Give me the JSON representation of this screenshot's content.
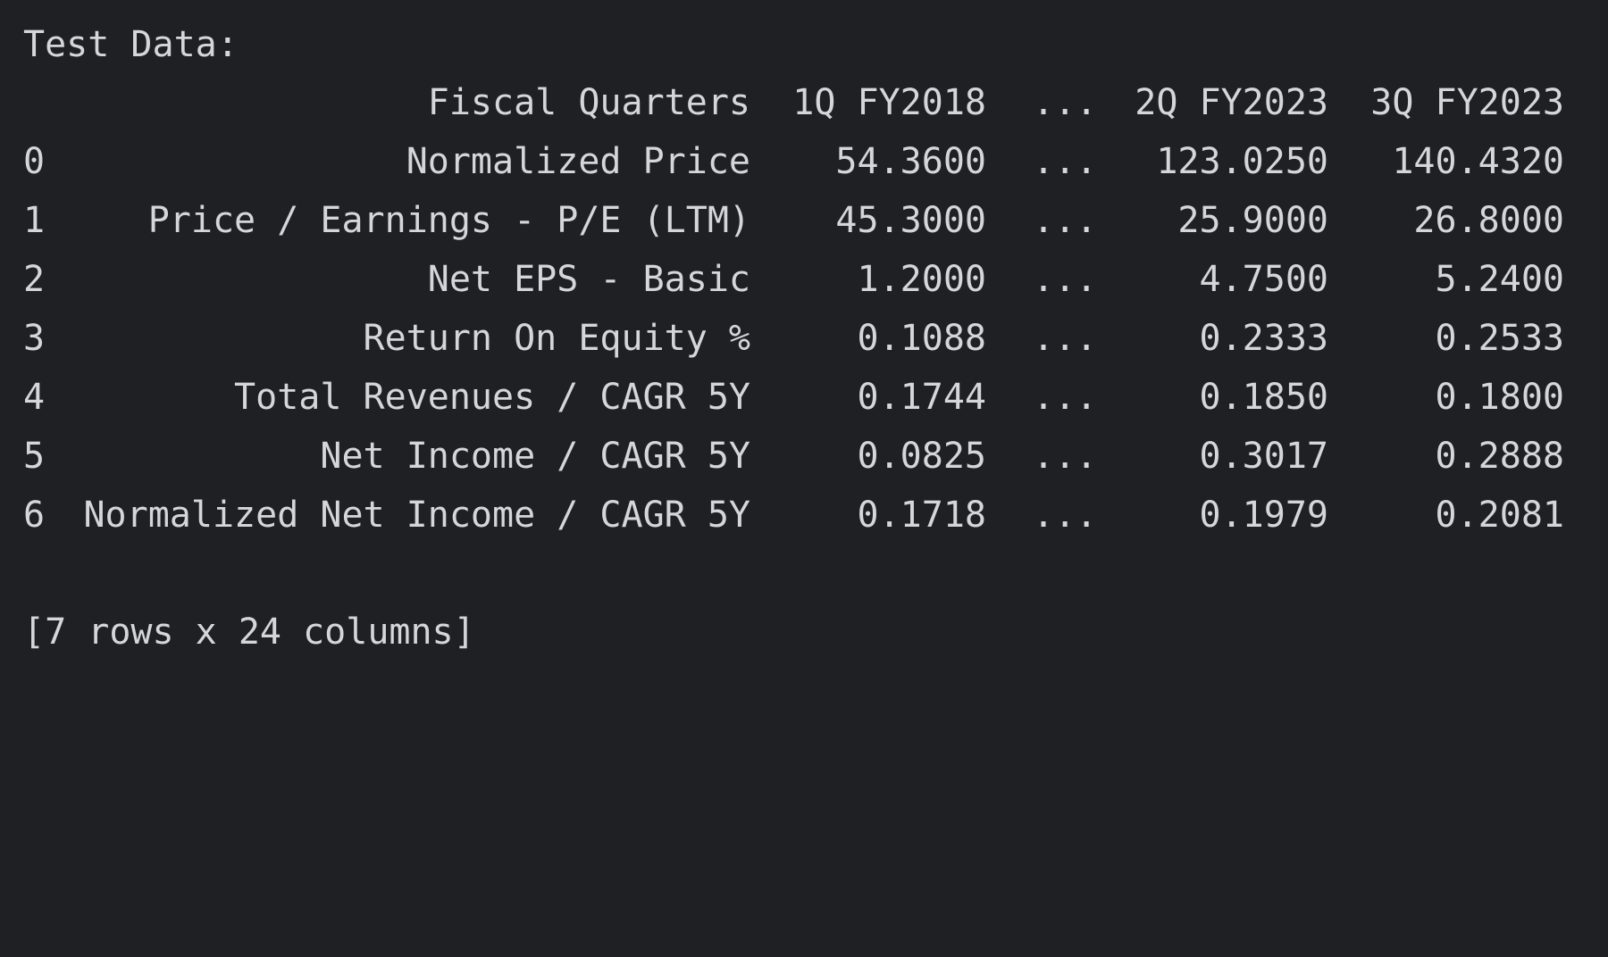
{
  "console": {
    "caption": "Test Data:",
    "footer": "[7 rows x 24 columns]"
  },
  "table": {
    "header": {
      "index": "",
      "label": "Fiscal Quarters",
      "col1": "1Q FY2018",
      "ellipsis": "...",
      "col2": "2Q FY2023",
      "col3": "3Q FY2023"
    },
    "rows": [
      {
        "index": "0",
        "label": "Normalized Price",
        "col1": "54.3600",
        "ellipsis": "...",
        "col2": "123.0250",
        "col3": "140.4320"
      },
      {
        "index": "1",
        "label": "Price / Earnings - P/E (LTM)",
        "col1": "45.3000",
        "ellipsis": "...",
        "col2": "25.9000",
        "col3": "26.8000"
      },
      {
        "index": "2",
        "label": "Net EPS - Basic",
        "col1": "1.2000",
        "ellipsis": "...",
        "col2": "4.7500",
        "col3": "5.2400"
      },
      {
        "index": "3",
        "label": "Return On Equity %",
        "col1": "0.1088",
        "ellipsis": "...",
        "col2": "0.2333",
        "col3": "0.2533"
      },
      {
        "index": "4",
        "label": "Total Revenues / CAGR 5Y",
        "col1": "0.1744",
        "ellipsis": "...",
        "col2": "0.1850",
        "col3": "0.1800"
      },
      {
        "index": "5",
        "label": "Net Income / CAGR 5Y",
        "col1": "0.0825",
        "ellipsis": "...",
        "col2": "0.3017",
        "col3": "0.2888"
      },
      {
        "index": "6",
        "label": "Normalized Net Income / CAGR 5Y",
        "col1": "0.1718",
        "ellipsis": "...",
        "col2": "0.1979",
        "col3": "0.2081"
      }
    ]
  },
  "colors": {
    "background": "#1f2023",
    "text": "#d4d6d9"
  }
}
